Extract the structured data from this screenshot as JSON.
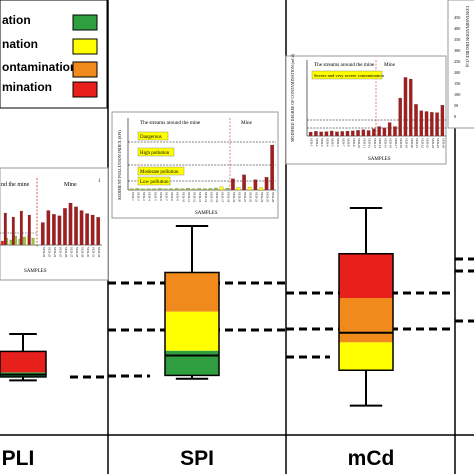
{
  "legend": {
    "items": [
      {
        "label": "ation",
        "color": "#2e9e3e"
      },
      {
        "label": "nation",
        "color": "#ffff00"
      },
      {
        "label": "ontamination",
        "color": "#f08a1c"
      },
      {
        "label": "mination",
        "color": "#e8201c"
      }
    ]
  },
  "panels": {
    "pli": {
      "label": "PLI"
    },
    "spi": {
      "label": "SPI"
    },
    "mcd": {
      "label": "mCd"
    }
  },
  "insets": {
    "pli": {
      "region_left": "nd the mine",
      "region_right": "Mine",
      "marker": "1",
      "xlabel": "SAMPLES",
      "samples": [
        "SED-22",
        "SED-23",
        "SED-24",
        "SED-25",
        "SED-26",
        "SED-27",
        "SED-28",
        "SED-29",
        "SED-30",
        "SED-31",
        "SED-32"
      ],
      "values": [
        3.0,
        4.6,
        4.1,
        3.9,
        4.9,
        5.6,
        5.1,
        4.6,
        4.2,
        4.0,
        3.7
      ]
    },
    "spi": {
      "ylabel": "SEDIMENT POLLUTION INDEX (SPI)",
      "xlabel": "SAMPLES",
      "region_left": "The streams around the mine",
      "region_right": "Mine",
      "bands": [
        "Dangerous",
        "High pollution",
        "Moderate pollution",
        "Low pollution"
      ],
      "samples": [
        "SED-1",
        "SED-2",
        "SED-3",
        "SED-4",
        "SED-5",
        "SED-6",
        "SED-7",
        "SED-8",
        "SED-9",
        "SED-10",
        "SED-11",
        "SED-12",
        "SED-13",
        "SED-14",
        "SED-15",
        "SED-16",
        "SED-17",
        "SED-18",
        "SED-19",
        "SED-20",
        "SED-21",
        "SED-22",
        "SED-23",
        "SED-24",
        "SED-25",
        "SED-26"
      ],
      "values": [
        0.6,
        0.7,
        0.5,
        0.6,
        0.6,
        0.7,
        0.5,
        0.6,
        0.7,
        0.6,
        0.8,
        0.6,
        0.7,
        0.6,
        0.7,
        0.9,
        1.5,
        0.8,
        5.0,
        1.2,
        6.8,
        1.3,
        4.6,
        1.1,
        5.7,
        20.0
      ],
      "ylim": [
        0,
        32
      ]
    },
    "mcd": {
      "ylabel": "MODIFIED DEGREE OF CONTAMINATION (mCd)",
      "xlabel": "SAMPLES",
      "region_left": "The streams around the mine",
      "region_right": "Mine",
      "band": "Severe and very severe contamination",
      "samples": [
        "SED-1",
        "SED-2",
        "SED-3",
        "SED-4",
        "SED-5",
        "SED-6",
        "SED-7",
        "SED-8",
        "SED-9",
        "SED-10",
        "SED-11",
        "SED-12",
        "SED-13",
        "SED-14",
        "SED-15",
        "SED-16",
        "SED-17",
        "SED-18",
        "SED-19",
        "SED-20",
        "SED-21",
        "SED-22",
        "SED-23",
        "SED-24",
        "SED-25",
        "SED-26"
      ],
      "values": [
        2.5,
        3.0,
        2.6,
        2.8,
        3.2,
        2.7,
        2.9,
        3.1,
        3.3,
        3.6,
        4.0,
        3.5,
        4.6,
        6.0,
        5.2,
        8.5,
        6.0,
        24.0,
        37.0,
        36.0,
        20.0,
        16.0,
        15.5,
        15.0,
        14.8,
        19.5
      ],
      "ylim": [
        0,
        48
      ]
    },
    "cf": {
      "ylabel": "CONTAMINATION DEGREE (Cd)",
      "ticks": [
        "0",
        "50",
        "100",
        "150",
        "200",
        "250",
        "300",
        "350",
        "400",
        "450"
      ]
    }
  },
  "chart_data": [
    {
      "type": "bar",
      "title": "",
      "panel": "PLI",
      "xlabel": "SAMPLES",
      "categories": [
        "SED-22",
        "SED-23",
        "SED-24",
        "SED-25",
        "SED-26",
        "SED-27",
        "SED-28",
        "SED-29",
        "SED-30",
        "SED-31",
        "SED-32"
      ],
      "values": [
        3.0,
        4.6,
        4.1,
        3.9,
        4.9,
        5.6,
        5.1,
        4.6,
        4.2,
        4.0,
        3.7
      ]
    },
    {
      "type": "bar",
      "panel": "SPI",
      "ylabel": "SEDIMENT POLLUTION INDEX (SPI)",
      "xlabel": "SAMPLES",
      "categories": [
        "SED-1",
        "SED-2",
        "SED-3",
        "SED-4",
        "SED-5",
        "SED-6",
        "SED-7",
        "SED-8",
        "SED-9",
        "SED-10",
        "SED-11",
        "SED-12",
        "SED-13",
        "SED-14",
        "SED-15",
        "SED-16",
        "SED-17",
        "SED-18",
        "SED-19",
        "SED-20",
        "SED-21",
        "SED-22",
        "SED-23",
        "SED-24",
        "SED-25",
        "SED-26"
      ],
      "values": [
        0.6,
        0.7,
        0.5,
        0.6,
        0.6,
        0.7,
        0.5,
        0.6,
        0.7,
        0.6,
        0.8,
        0.6,
        0.7,
        0.6,
        0.7,
        0.9,
        1.5,
        0.8,
        5.0,
        1.2,
        6.8,
        1.3,
        4.6,
        1.1,
        5.7,
        20.0
      ],
      "ylim": [
        0,
        32
      ]
    },
    {
      "type": "bar",
      "panel": "mCd",
      "ylabel": "MODIFIED DEGREE OF CONTAMINATION (mCd)",
      "xlabel": "SAMPLES",
      "categories": [
        "SED-1",
        "SED-2",
        "SED-3",
        "SED-4",
        "SED-5",
        "SED-6",
        "SED-7",
        "SED-8",
        "SED-9",
        "SED-10",
        "SED-11",
        "SED-12",
        "SED-13",
        "SED-14",
        "SED-15",
        "SED-16",
        "SED-17",
        "SED-18",
        "SED-19",
        "SED-20",
        "SED-21",
        "SED-22",
        "SED-23",
        "SED-24",
        "SED-25",
        "SED-26"
      ],
      "values": [
        2.5,
        3.0,
        2.6,
        2.8,
        3.2,
        2.7,
        2.9,
        3.1,
        3.3,
        3.6,
        4.0,
        3.5,
        4.6,
        6.0,
        5.2,
        8.5,
        6.0,
        24.0,
        37.0,
        36.0,
        20.0,
        16.0,
        15.5,
        15.0,
        14.8,
        19.5
      ],
      "ylim": [
        0,
        48
      ]
    },
    {
      "type": "box",
      "panels": [
        "PLI",
        "SPI",
        "mCd"
      ],
      "boxes": [
        {
          "name": "PLI",
          "whisker_low": 0.2,
          "q1": 0.26,
          "median": 0.3,
          "q3": 0.7,
          "whisker_high": 1.0,
          "bands": [
            "#2e9e3e",
            "#e8201c"
          ]
        },
        {
          "name": "SPI",
          "whisker_low": 0.08,
          "q1": 0.1,
          "median": 0.22,
          "q3": 0.72,
          "whisker_high": 1.0,
          "bands": [
            "#2e9e3e",
            "#ffff00",
            "#f08a1c"
          ]
        },
        {
          "name": "mCd",
          "whisker_low": 0.05,
          "q1": 0.22,
          "median": 0.4,
          "q3": 0.78,
          "whisker_high": 1.0,
          "bands": [
            "#ffff00",
            "#f08a1c",
            "#e8201c"
          ]
        }
      ]
    }
  ]
}
